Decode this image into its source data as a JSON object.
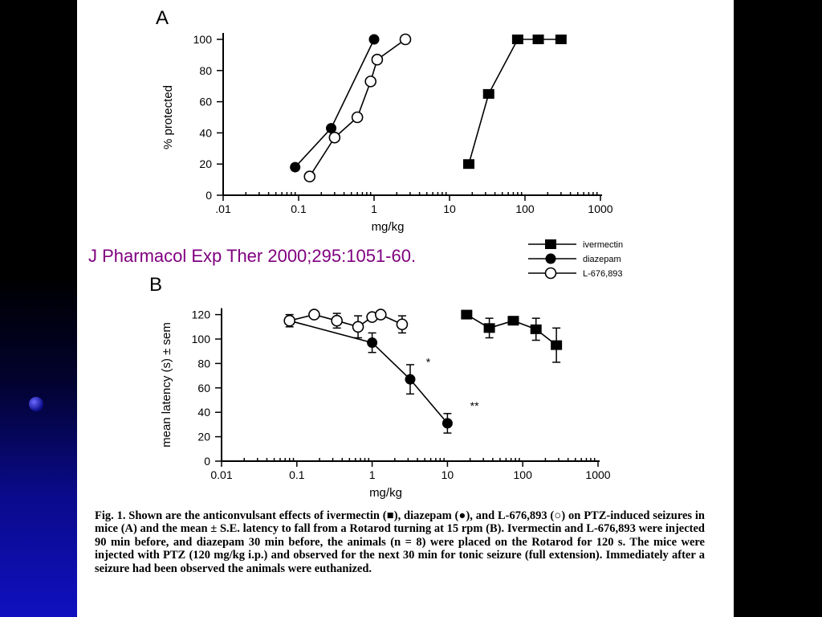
{
  "citation": "J Pharmacol Exp Ther 2000;295:1051-60.",
  "caption": "Fig. 1. Shown are the anticonvulsant effects of ivermectin (■), diazepam (●), and L-676,893 (○) on PTZ-induced seizures in mice (A) and the mean ± S.E. latency to fall from a Rotarod turning at 15 rpm (B). Ivermectin and L-676,893 were injected 90 min before, and diazepam 30 min before, the animals (n = 8) were placed on the Rotarod for 120 s. The mice were injected with PTZ (120 mg/kg i.p.) and observed for the next 30 min for tonic seizure (full extension). Immediately after a seizure had been observed the animals were euthanized.",
  "legend": [
    {
      "name": "ivermectin",
      "marker": "square-filled"
    },
    {
      "name": "diazepam",
      "marker": "circle-filled"
    },
    {
      "name": "L-676,893",
      "marker": "circle-open"
    }
  ],
  "chart_data": [
    {
      "panel": "A",
      "type": "line",
      "xscale": "log",
      "xlabel": "mg/kg",
      "ylabel": "% protected",
      "xlim": [
        0.01,
        1000
      ],
      "ylim": [
        0,
        100
      ],
      "xticklabels": [
        ".01",
        "0.1",
        "1",
        "10",
        "100",
        "1000"
      ],
      "yticklabels": [
        "0",
        "20",
        "40",
        "60",
        "80",
        "100"
      ],
      "series": [
        {
          "name": "ivermectin",
          "marker": "square-filled",
          "points": [
            [
              18,
              20
            ],
            [
              33,
              65
            ],
            [
              80,
              100
            ],
            [
              150,
              100
            ],
            [
              300,
              100
            ]
          ]
        },
        {
          "name": "diazepam",
          "marker": "circle-filled",
          "points": [
            [
              0.09,
              18
            ],
            [
              0.27,
              43
            ],
            [
              1.0,
              100
            ]
          ]
        },
        {
          "name": "L-676,893",
          "marker": "circle-open",
          "points": [
            [
              0.14,
              12
            ],
            [
              0.3,
              37
            ],
            [
              0.6,
              50
            ],
            [
              0.9,
              73
            ],
            [
              1.1,
              87
            ],
            [
              2.6,
              100
            ]
          ]
        }
      ]
    },
    {
      "panel": "B",
      "type": "line",
      "xscale": "log",
      "xlabel": "mg/kg",
      "ylabel": "mean latency (s) ± sem",
      "xlim": [
        0.01,
        1000
      ],
      "ylim": [
        0,
        125
      ],
      "xticklabels": [
        "0.01",
        "0.1",
        "1",
        "10",
        "100",
        "1000"
      ],
      "yticklabels": [
        "0",
        "20",
        "40",
        "60",
        "80",
        "100",
        "120"
      ],
      "annotations": [
        {
          "text": "*",
          "x": 5.2,
          "y": 82
        },
        {
          "text": "**",
          "x": 20,
          "y": 46
        }
      ],
      "series": [
        {
          "name": "ivermectin",
          "marker": "square-filled",
          "points": [
            [
              18,
              120,
              0
            ],
            [
              36,
              109,
              8
            ],
            [
              75,
              115,
              3
            ],
            [
              150,
              108,
              9
            ],
            [
              280,
              95,
              14
            ]
          ]
        },
        {
          "name": "diazepam",
          "marker": "circle-filled",
          "points": [
            [
              0.08,
              115,
              5
            ],
            [
              1.0,
              97,
              8
            ],
            [
              3.2,
              67,
              12
            ],
            [
              10,
              31,
              8
            ]
          ]
        },
        {
          "name": "L-676,893",
          "marker": "circle-open",
          "points": [
            [
              0.08,
              115,
              0
            ],
            [
              0.17,
              120,
              0
            ],
            [
              0.34,
              115,
              6
            ],
            [
              0.65,
              110,
              9
            ],
            [
              1.0,
              118,
              0
            ],
            [
              1.3,
              120,
              0
            ],
            [
              2.5,
              112,
              7
            ]
          ]
        }
      ]
    }
  ]
}
